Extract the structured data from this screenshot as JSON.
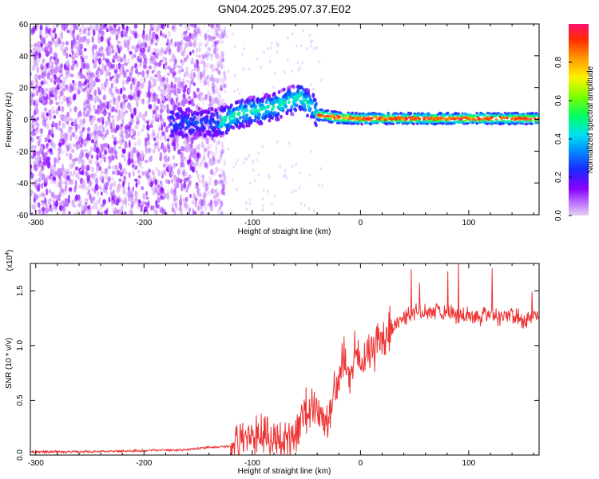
{
  "title": "GN04.2025.295.07.37.E02",
  "chart_data": [
    {
      "type": "heatmap",
      "name": "spectrogram",
      "xlabel": "Height of straight line (km)",
      "ylabel": "Frequency (Hz)",
      "xlim": [
        -305,
        165
      ],
      "ylim": [
        -60,
        60
      ],
      "xticks": [
        -300,
        -200,
        -100,
        0,
        100
      ],
      "yticks": [
        -60,
        -40,
        -20,
        0,
        20,
        40,
        60
      ],
      "colorbar": {
        "label": "Normalized spectral amplitude",
        "range": [
          0,
          1
        ],
        "ticks": [
          "0.0",
          "0.2",
          "0.4",
          "0.6",
          "0.8"
        ]
      },
      "features": {
        "noise_region_x": [
          -305,
          -125
        ],
        "signal_track": [
          [
            -130,
            -2
          ],
          [
            -110,
            4
          ],
          [
            -90,
            6
          ],
          [
            -70,
            10
          ],
          [
            -55,
            14
          ],
          [
            -45,
            8
          ],
          [
            -40,
            3
          ],
          [
            -20,
            1
          ],
          [
            0,
            0.5
          ],
          [
            100,
            0.5
          ],
          [
            165,
            0.5
          ]
        ]
      }
    },
    {
      "type": "line",
      "name": "snr",
      "xlabel": "Height of straight line (km)",
      "ylabel": "SNR (10 * v/v)",
      "yexponent": "(x10",
      "yexponent_power": "4",
      "yexponent_close": ")",
      "xlim": [
        -305,
        165
      ],
      "ylim": [
        0,
        1.75
      ],
      "xticks": [
        -300,
        -200,
        -100,
        0,
        100
      ],
      "yticks": [
        "0.0",
        "0.5",
        "1.0",
        "1.5"
      ],
      "series": [
        {
          "name": "SNR",
          "color": "#ee3333",
          "x": [
            -305,
            -250,
            -200,
            -160,
            -140,
            -120,
            -110,
            -100,
            -90,
            -80,
            -70,
            -60,
            -50,
            -40,
            -30,
            -25,
            -20,
            -15,
            -10,
            -5,
            0,
            10,
            20,
            30,
            40,
            50,
            60,
            70,
            80,
            90,
            100,
            110,
            120,
            130,
            140,
            150,
            160,
            165
          ],
          "values": [
            0.03,
            0.03,
            0.04,
            0.05,
            0.07,
            0.08,
            0.12,
            0.2,
            0.16,
            0.18,
            0.15,
            0.22,
            0.4,
            0.45,
            0.2,
            0.55,
            0.6,
            0.9,
            0.7,
            0.9,
            0.85,
            0.95,
            1.1,
            1.2,
            1.25,
            1.28,
            1.3,
            1.32,
            1.3,
            1.28,
            1.28,
            1.25,
            1.3,
            1.25,
            1.28,
            1.22,
            1.28,
            1.25
          ]
        }
      ]
    }
  ],
  "colors": {
    "line": "#ee3333",
    "noise_purple": "#7a22e8"
  }
}
